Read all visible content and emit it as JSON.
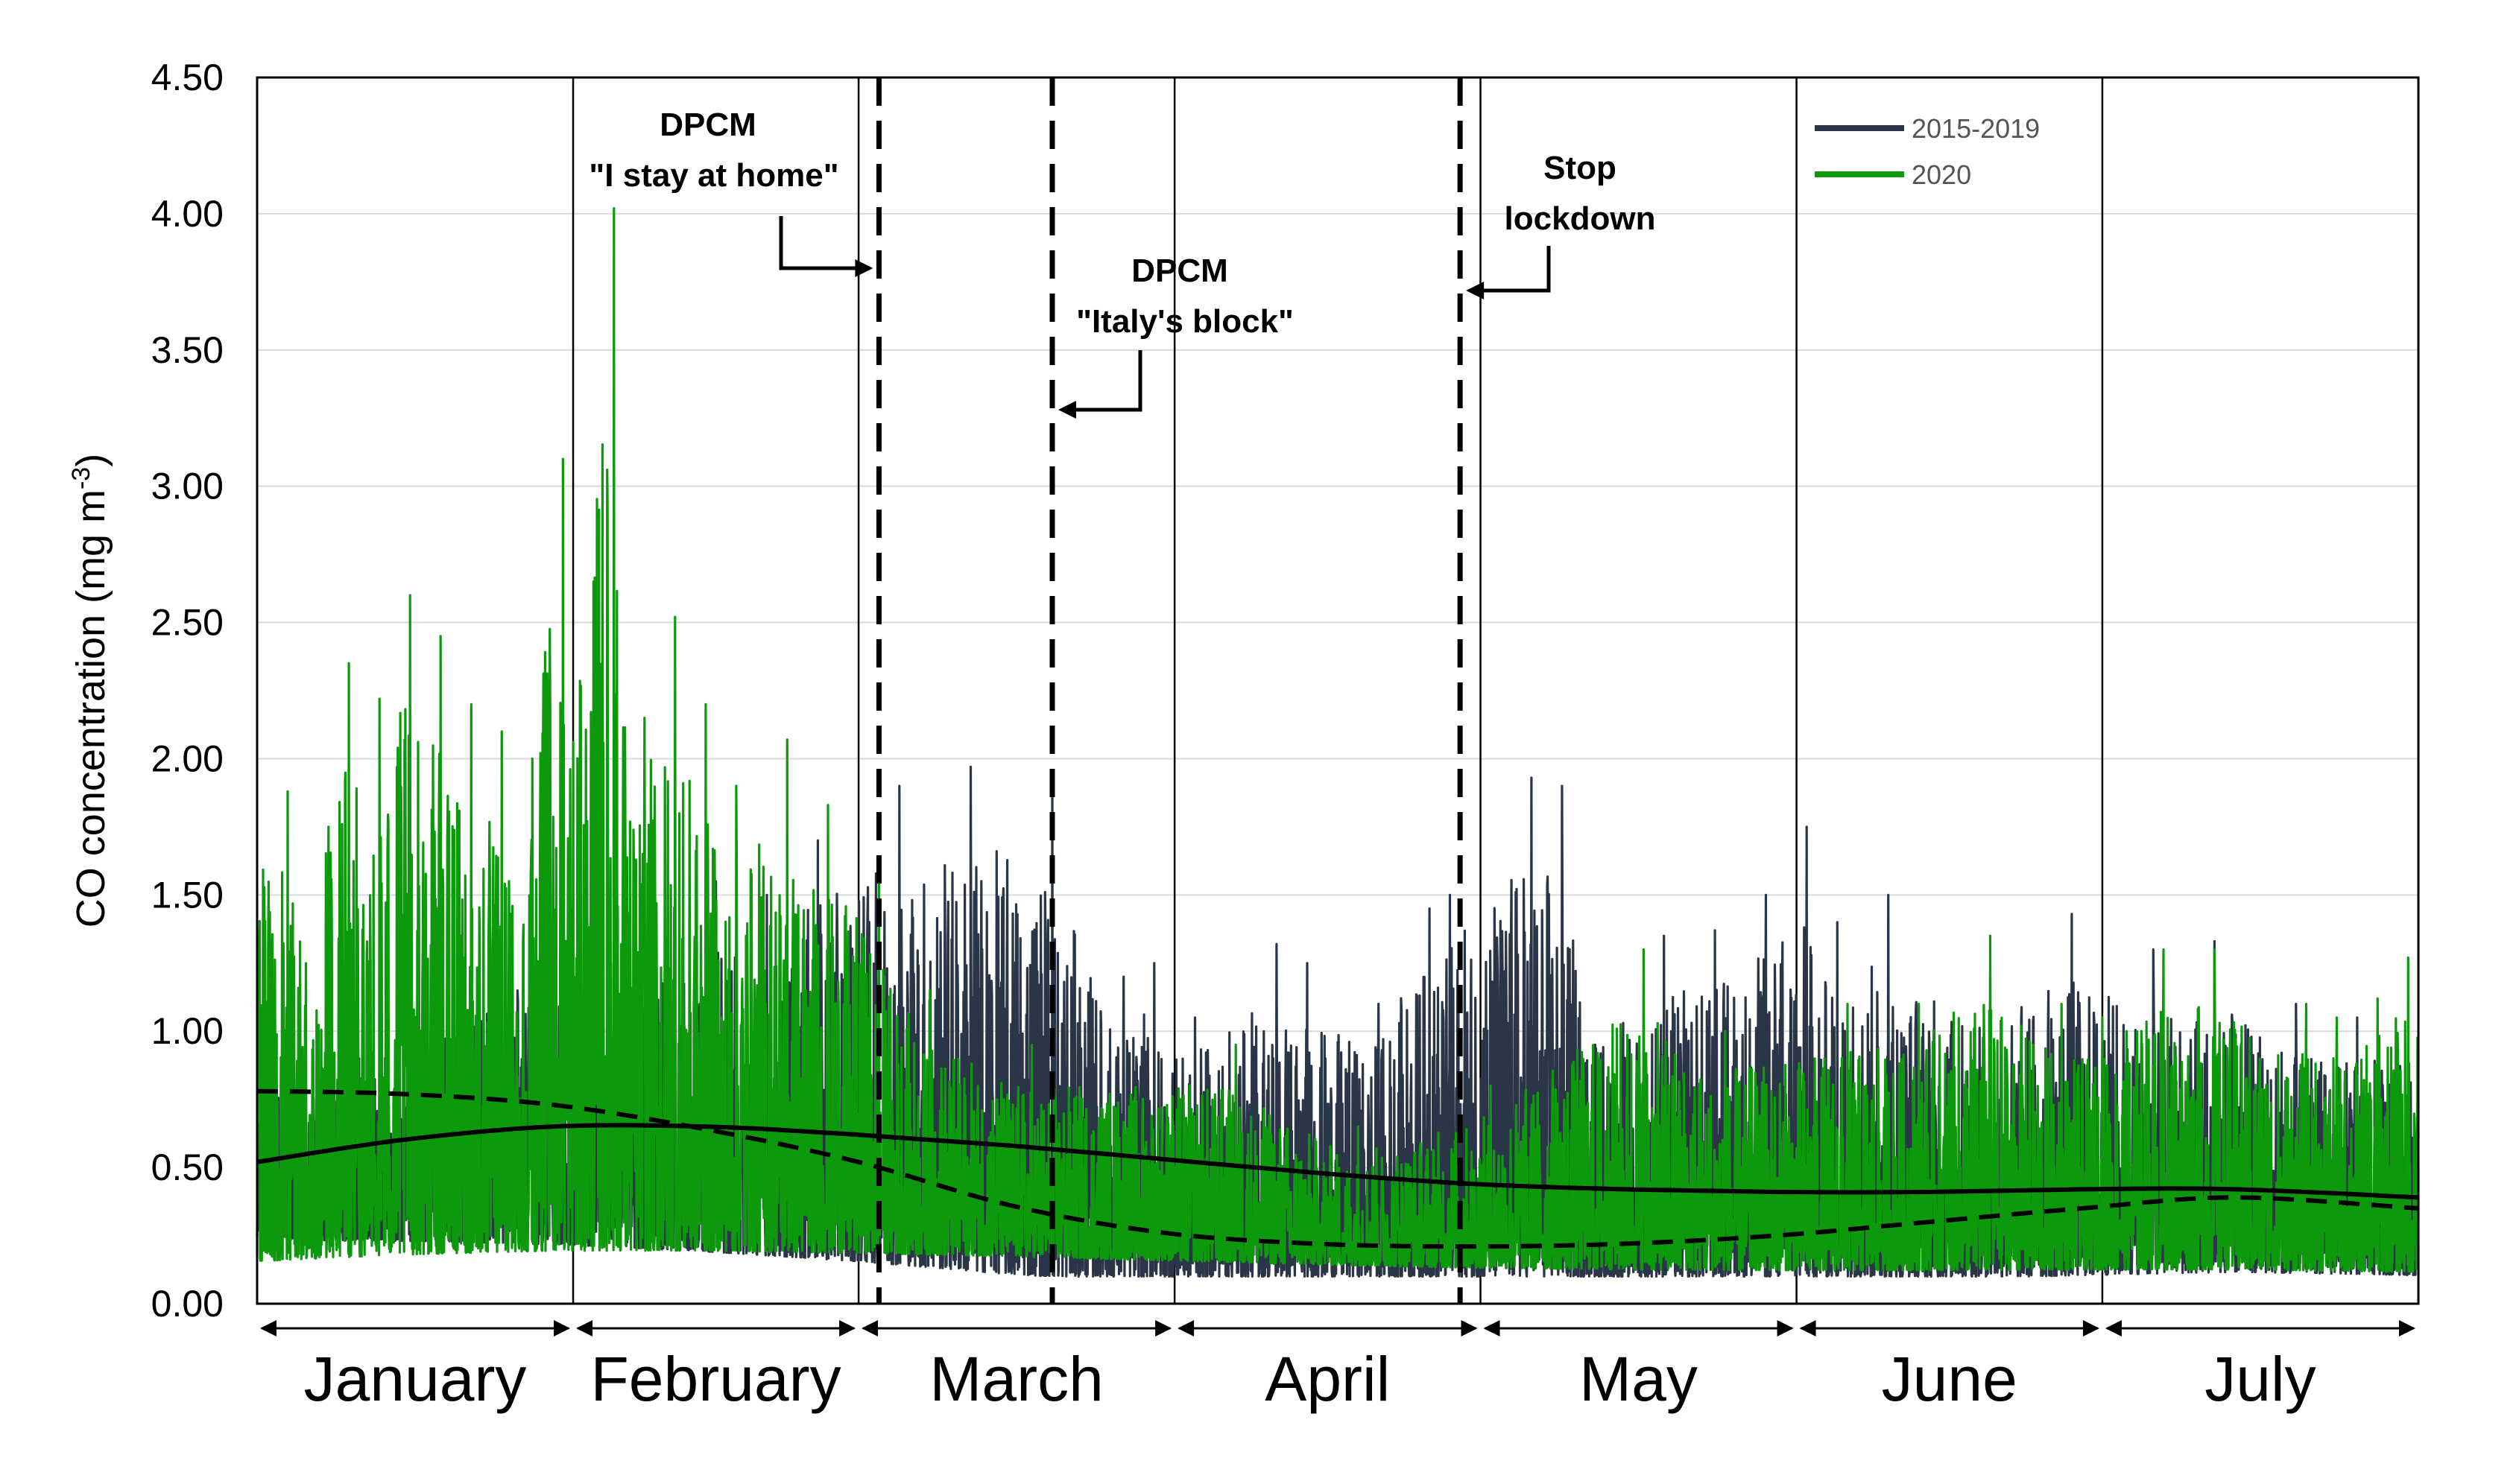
{
  "chart_data": {
    "type": "line",
    "ylabel": "CO concentration (mg  m",
    "ylabel_sup": "-3",
    "ylabel_close": ")",
    "ylim": [
      0,
      4.5
    ],
    "yticks": [
      "0.00",
      "0.50",
      "1.00",
      "1.50",
      "2.00",
      "2.50",
      "3.00",
      "3.50",
      "4.00",
      "4.50"
    ],
    "grid": true,
    "legend_position": "top-right",
    "months": [
      "January",
      "February",
      "March",
      "April",
      "May",
      "June",
      "July"
    ],
    "month_starts": [
      1,
      32,
      60,
      91,
      121,
      152,
      182
    ],
    "x_end": 213,
    "colors": {
      "s2015_2019": "#2a3547",
      "s2020": "#0c9a0c",
      "trend": "#000000"
    },
    "series": [
      {
        "name": "2015-2019",
        "trend": [
          [
            1,
            0.78
          ],
          [
            15,
            0.77
          ],
          [
            30,
            0.73
          ],
          [
            45,
            0.64
          ],
          [
            60,
            0.52
          ],
          [
            75,
            0.36
          ],
          [
            90,
            0.26
          ],
          [
            105,
            0.22
          ],
          [
            120,
            0.21
          ],
          [
            135,
            0.22
          ],
          [
            150,
            0.25
          ],
          [
            165,
            0.3
          ],
          [
            180,
            0.35
          ],
          [
            195,
            0.39
          ],
          [
            213,
            0.35
          ]
        ],
        "peaks": [
          [
            10,
            0.9
          ],
          [
            30,
            1.45
          ],
          [
            45,
            1.55
          ],
          [
            50,
            1.5
          ],
          [
            55,
            1.7
          ],
          [
            63,
            1.9
          ],
          [
            70,
            1.97
          ],
          [
            78,
            1.95
          ],
          [
            85,
            1.2
          ],
          [
            88,
            1.25
          ],
          [
            92,
            1.05
          ],
          [
            100,
            1.32
          ],
          [
            103,
            1.25
          ],
          [
            110,
            1.1
          ],
          [
            115,
            1.45
          ],
          [
            117,
            1.5
          ],
          [
            125,
            1.93
          ],
          [
            128,
            1.9
          ],
          [
            134,
            1.03
          ],
          [
            138,
            1.35
          ],
          [
            143,
            1.37
          ],
          [
            148,
            1.5
          ],
          [
            152,
            1.75
          ],
          [
            155,
            1.4
          ],
          [
            160,
            1.5
          ],
          [
            170,
            1.2
          ],
          [
            178,
            1.43
          ],
          [
            186,
            1.3
          ],
          [
            192,
            1.33
          ],
          [
            200,
            1.1
          ],
          [
            206,
            1.05
          ]
        ]
      },
      {
        "name": "2020",
        "trend": [
          [
            1,
            0.52
          ],
          [
            15,
            0.6
          ],
          [
            30,
            0.65
          ],
          [
            45,
            0.65
          ],
          [
            60,
            0.62
          ],
          [
            75,
            0.58
          ],
          [
            90,
            0.53
          ],
          [
            105,
            0.48
          ],
          [
            120,
            0.44
          ],
          [
            135,
            0.42
          ],
          [
            150,
            0.41
          ],
          [
            165,
            0.41
          ],
          [
            180,
            0.42
          ],
          [
            195,
            0.42
          ],
          [
            213,
            0.39
          ]
        ],
        "peaks": [
          [
            3,
            1.88
          ],
          [
            7,
            1.75
          ],
          [
            9,
            2.35
          ],
          [
            12,
            2.22
          ],
          [
            15,
            2.6
          ],
          [
            18,
            2.45
          ],
          [
            21,
            2.2
          ],
          [
            24,
            2.1
          ],
          [
            27,
            2.0
          ],
          [
            30,
            3.1
          ],
          [
            33,
            2.65
          ],
          [
            35,
            4.02
          ],
          [
            38,
            2.15
          ],
          [
            41,
            2.52
          ],
          [
            44,
            2.2
          ],
          [
            47,
            1.9
          ],
          [
            52,
            2.07
          ],
          [
            56,
            1.83
          ],
          [
            61,
            1.63
          ],
          [
            66,
            1.15
          ],
          [
            76,
            0.95
          ],
          [
            96,
            0.95
          ],
          [
            108,
            0.65
          ],
          [
            121,
            0.8
          ],
          [
            136,
            1.3
          ],
          [
            144,
            1.0
          ],
          [
            156,
            1.1
          ],
          [
            163,
            1.1
          ],
          [
            170,
            1.35
          ],
          [
            177,
            1.1
          ],
          [
            181,
            1.05
          ],
          [
            187,
            1.3
          ],
          [
            192,
            1.3
          ],
          [
            201,
            1.1
          ],
          [
            204,
            1.05
          ],
          [
            208,
            1.12
          ],
          [
            211,
            1.27
          ]
        ]
      }
    ],
    "events": [
      {
        "label_line1": "DPCM",
        "label_line2": "\"I stay at home\"",
        "x": 62
      },
      {
        "label_line1": "DPCM",
        "label_line2": "\"Italy's block\"",
        "x": 79
      },
      {
        "label_line1": "Stop",
        "label_line2": "lockdown",
        "x": 119
      }
    ]
  }
}
